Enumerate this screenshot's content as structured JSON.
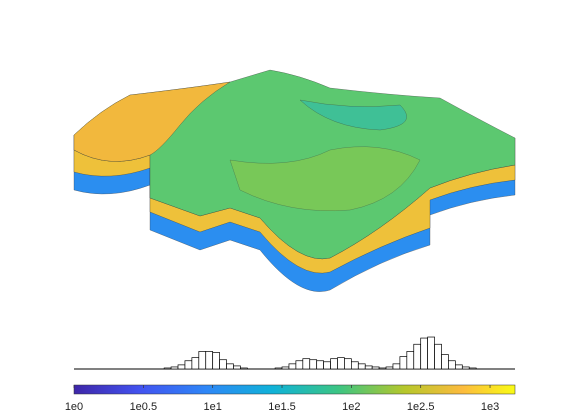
{
  "chart_data": {
    "type": "histogram",
    "bins": [
      0.6,
      0.65,
      0.7,
      0.75,
      0.8,
      0.85,
      0.9,
      0.95,
      1.0,
      1.05,
      1.1,
      1.15,
      1.2,
      1.25,
      1.3,
      1.35,
      1.4,
      1.45,
      1.5,
      1.55,
      1.6,
      1.65,
      1.7,
      1.75,
      1.8,
      1.85,
      1.9,
      1.95,
      2.0,
      2.05,
      2.1,
      2.15,
      2.2,
      2.25,
      2.3,
      2.35,
      2.4,
      2.45,
      2.5,
      2.55,
      2.6,
      2.65,
      2.7,
      2.75,
      2.8,
      2.85,
      2.9,
      2.95,
      3.0
    ],
    "counts": [
      0,
      1,
      2,
      4,
      8,
      11,
      17,
      17,
      16,
      9,
      5,
      3,
      1,
      0,
      0,
      0,
      0,
      1,
      2,
      5,
      8,
      10,
      9,
      8,
      7,
      10,
      11,
      10,
      7,
      5,
      3,
      2,
      1,
      2,
      5,
      12,
      17,
      24,
      30,
      31,
      24,
      14,
      8,
      4,
      2,
      1,
      0,
      0
    ],
    "xlim": [
      0,
      3.18
    ],
    "ylim": [
      0,
      32
    ],
    "xticks": [
      {
        "value": 0,
        "label": "1e0"
      },
      {
        "value": 0.5,
        "label": "1e0.5"
      },
      {
        "value": 1,
        "label": "1e1"
      },
      {
        "value": 1.5,
        "label": "1e1.5"
      },
      {
        "value": 2,
        "label": "1e2"
      },
      {
        "value": 2.5,
        "label": "1e2.5"
      },
      {
        "value": 3,
        "label": "1e3"
      }
    ],
    "color": "#ffffff"
  }
}
